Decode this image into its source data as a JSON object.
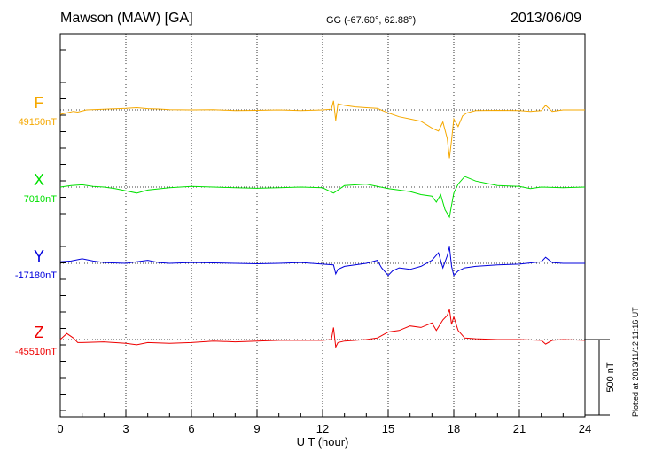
{
  "header": {
    "station": "Mawson (MAW)  [GA]",
    "coords": "GG (-67.60°,  62.88°)",
    "date": "2013/06/09"
  },
  "footer": {
    "plotted": "Plotted at 2013/11/12 11:16 UT"
  },
  "chart_data": {
    "type": "line",
    "xlabel": "U T (hour)",
    "xlim": [
      0,
      24
    ],
    "xticks": [
      0,
      3,
      6,
      9,
      12,
      15,
      18,
      21,
      24
    ],
    "xtick_labels": [
      "0",
      "3",
      "6",
      "9",
      "12",
      "15",
      "18",
      "21",
      "24"
    ],
    "grid": true,
    "scale_bar": {
      "label": "500 nT",
      "value_nT": 500
    },
    "series": [
      {
        "name": "F",
        "baseline_label": "49150nT",
        "baseline": 49150,
        "color": "#f5a800",
        "points": [
          [
            0,
            -30
          ],
          [
            0.3,
            -20
          ],
          [
            0.6,
            -10
          ],
          [
            0.8,
            -15
          ],
          [
            1.2,
            0
          ],
          [
            2,
            5
          ],
          [
            3,
            10
          ],
          [
            3.5,
            15
          ],
          [
            4,
            8
          ],
          [
            4.5,
            6
          ],
          [
            5,
            2
          ],
          [
            6,
            0
          ],
          [
            7,
            2
          ],
          [
            8,
            -5
          ],
          [
            9,
            -3
          ],
          [
            10,
            0
          ],
          [
            11,
            -5
          ],
          [
            12,
            0
          ],
          [
            12.4,
            5
          ],
          [
            12.5,
            60
          ],
          [
            12.6,
            -70
          ],
          [
            12.7,
            40
          ],
          [
            13,
            30
          ],
          [
            13.5,
            20
          ],
          [
            14,
            15
          ],
          [
            14.5,
            10
          ],
          [
            15,
            -20
          ],
          [
            15.5,
            -45
          ],
          [
            16,
            -60
          ],
          [
            16.5,
            -75
          ],
          [
            17,
            -120
          ],
          [
            17.3,
            -140
          ],
          [
            17.5,
            -80
          ],
          [
            17.7,
            -190
          ],
          [
            17.8,
            -320
          ],
          [
            17.9,
            -200
          ],
          [
            18,
            -60
          ],
          [
            18.2,
            -110
          ],
          [
            18.4,
            -40
          ],
          [
            18.6,
            -20
          ],
          [
            19,
            -5
          ],
          [
            20,
            -3
          ],
          [
            21,
            -5
          ],
          [
            21.5,
            -10
          ],
          [
            22,
            -5
          ],
          [
            22.2,
            30
          ],
          [
            22.5,
            -10
          ],
          [
            23,
            0
          ],
          [
            24,
            0
          ]
        ]
      },
      {
        "name": "X",
        "baseline_label": "7010nT",
        "baseline": 7010,
        "color": "#00e000",
        "points": [
          [
            0,
            0
          ],
          [
            0.5,
            10
          ],
          [
            1,
            15
          ],
          [
            1.5,
            5
          ],
          [
            2,
            0
          ],
          [
            2.5,
            -10
          ],
          [
            3,
            -25
          ],
          [
            3.5,
            -40
          ],
          [
            4,
            -20
          ],
          [
            5,
            -5
          ],
          [
            6,
            5
          ],
          [
            7,
            0
          ],
          [
            8,
            -5
          ],
          [
            9,
            -8
          ],
          [
            10,
            -5
          ],
          [
            11,
            0
          ],
          [
            12,
            -5
          ],
          [
            12.5,
            -40
          ],
          [
            12.6,
            -30
          ],
          [
            13,
            10
          ],
          [
            14,
            20
          ],
          [
            15,
            -10
          ],
          [
            15.5,
            -20
          ],
          [
            16,
            -30
          ],
          [
            16.5,
            -50
          ],
          [
            17,
            -60
          ],
          [
            17.2,
            -100
          ],
          [
            17.4,
            -50
          ],
          [
            17.6,
            -150
          ],
          [
            17.8,
            -200
          ],
          [
            17.9,
            -120
          ],
          [
            18,
            -40
          ],
          [
            18.2,
            20
          ],
          [
            18.5,
            70
          ],
          [
            19,
            40
          ],
          [
            19.5,
            25
          ],
          [
            20,
            10
          ],
          [
            21,
            5
          ],
          [
            21.5,
            -10
          ],
          [
            22,
            0
          ],
          [
            23,
            -5
          ],
          [
            24,
            0
          ]
        ]
      },
      {
        "name": "Y",
        "baseline_label": "-17180nT",
        "baseline": -17180,
        "color": "#0000dd",
        "points": [
          [
            0,
            10
          ],
          [
            0.5,
            15
          ],
          [
            1,
            30
          ],
          [
            1.5,
            15
          ],
          [
            2,
            5
          ],
          [
            3,
            0
          ],
          [
            3.5,
            10
          ],
          [
            4,
            20
          ],
          [
            4.5,
            5
          ],
          [
            5,
            0
          ],
          [
            6,
            5
          ],
          [
            7,
            3
          ],
          [
            8,
            0
          ],
          [
            9,
            -3
          ],
          [
            10,
            0
          ],
          [
            11,
            5
          ],
          [
            12,
            -5
          ],
          [
            12.5,
            -10
          ],
          [
            12.6,
            -70
          ],
          [
            12.7,
            -40
          ],
          [
            13,
            -20
          ],
          [
            14,
            0
          ],
          [
            14.5,
            20
          ],
          [
            14.7,
            -30
          ],
          [
            15,
            -80
          ],
          [
            15.2,
            -50
          ],
          [
            15.5,
            -30
          ],
          [
            16,
            -40
          ],
          [
            16.5,
            -20
          ],
          [
            17,
            20
          ],
          [
            17.3,
            70
          ],
          [
            17.5,
            -30
          ],
          [
            17.7,
            50
          ],
          [
            17.8,
            110
          ],
          [
            17.9,
            -20
          ],
          [
            18,
            -80
          ],
          [
            18.2,
            -50
          ],
          [
            18.5,
            -30
          ],
          [
            19,
            -20
          ],
          [
            20,
            -10
          ],
          [
            21,
            -5
          ],
          [
            22,
            10
          ],
          [
            22.2,
            40
          ],
          [
            22.5,
            5
          ],
          [
            23,
            0
          ],
          [
            24,
            0
          ]
        ]
      },
      {
        "name": "Z",
        "baseline_label": "-45510nT",
        "baseline": -45510,
        "color": "#ee0000",
        "points": [
          [
            0,
            0
          ],
          [
            0.3,
            40
          ],
          [
            0.6,
            10
          ],
          [
            0.8,
            -20
          ],
          [
            1,
            -20
          ],
          [
            2,
            -15
          ],
          [
            3,
            -25
          ],
          [
            3.5,
            -35
          ],
          [
            4,
            -20
          ],
          [
            5,
            -25
          ],
          [
            6,
            -20
          ],
          [
            7,
            -10
          ],
          [
            8,
            -15
          ],
          [
            9,
            -10
          ],
          [
            10,
            -5
          ],
          [
            11,
            -5
          ],
          [
            12,
            -5
          ],
          [
            12.4,
            0
          ],
          [
            12.5,
            80
          ],
          [
            12.6,
            -50
          ],
          [
            12.7,
            -20
          ],
          [
            13,
            -10
          ],
          [
            14,
            0
          ],
          [
            14.5,
            10
          ],
          [
            15,
            50
          ],
          [
            15.5,
            60
          ],
          [
            16,
            90
          ],
          [
            16.5,
            80
          ],
          [
            17,
            110
          ],
          [
            17.2,
            60
          ],
          [
            17.5,
            130
          ],
          [
            17.7,
            160
          ],
          [
            17.8,
            200
          ],
          [
            17.9,
            100
          ],
          [
            18,
            150
          ],
          [
            18.2,
            60
          ],
          [
            18.5,
            10
          ],
          [
            19,
            5
          ],
          [
            20,
            0
          ],
          [
            21,
            0
          ],
          [
            22,
            -5
          ],
          [
            22.2,
            -30
          ],
          [
            22.5,
            -5
          ],
          [
            23,
            0
          ],
          [
            24,
            -5
          ]
        ]
      }
    ]
  }
}
